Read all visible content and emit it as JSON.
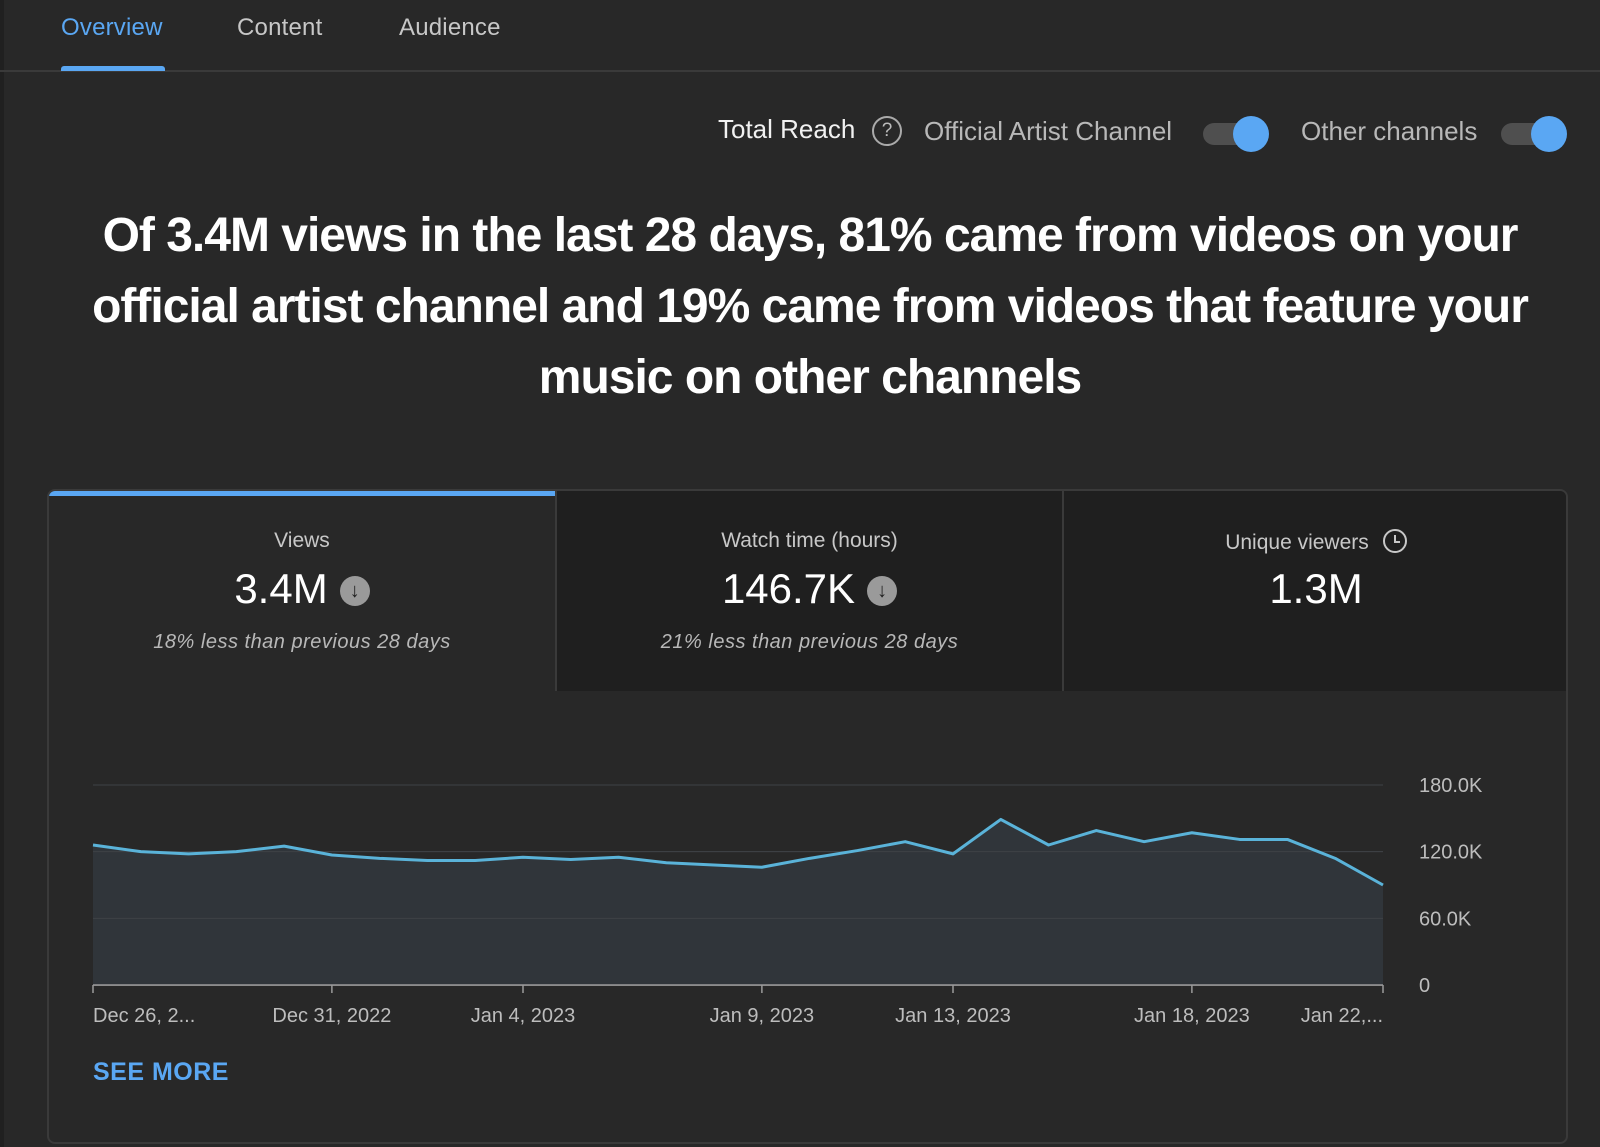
{
  "tabs": [
    {
      "label": "Overview",
      "active": true
    },
    {
      "label": "Content",
      "active": false
    },
    {
      "label": "Audience",
      "active": false
    }
  ],
  "reach": {
    "title": "Total Reach",
    "help_icon": "help-circle-icon",
    "toggles": [
      {
        "label": "Official Artist Channel",
        "on": true
      },
      {
        "label": "Other channels",
        "on": true
      }
    ]
  },
  "headline": "Of 3.4M views in the last 28 days, 81% came from videos on your official artist channel and 19% came from videos that feature your music on other channels",
  "metrics": [
    {
      "label": "Views",
      "value": "3.4M",
      "trend_icon": "arrow-down-circle-icon",
      "change": "18% less than previous 28 days",
      "selected": true
    },
    {
      "label": "Watch time (hours)",
      "value": "146.7K",
      "trend_icon": "arrow-down-circle-icon",
      "change": "21% less than previous 28 days",
      "selected": false
    },
    {
      "label": "Unique viewers",
      "value": "1.3M",
      "info_icon": "clock-icon",
      "selected": false
    }
  ],
  "accent_color": "#5aa7f3",
  "line_color": "#5ab3d9",
  "see_more": "SEE MORE",
  "chart_data": {
    "type": "area",
    "ylim": [
      0,
      180000
    ],
    "y_ticks": [
      "180.0K",
      "120.0K",
      "60.0K",
      "0"
    ],
    "y_tick_values": [
      180000,
      120000,
      60000,
      0
    ],
    "x_tick_labels": [
      "Dec 26, 2...",
      "Dec 31, 2022",
      "Jan 4, 2023",
      "Jan 9, 2023",
      "Jan 13, 2023",
      "Jan 18, 2023",
      "Jan 22,..."
    ],
    "x_tick_indices": [
      0,
      5,
      9,
      14,
      18,
      23,
      27
    ],
    "series": [
      {
        "values": [
          126000,
          120000,
          118000,
          120000,
          125000,
          117000,
          114000,
          112000,
          112000,
          115000,
          113000,
          115000,
          110000,
          108000,
          106000,
          114000,
          121000,
          129000,
          118000,
          149000,
          126000,
          139000,
          129000,
          137000,
          131000,
          131000,
          114000,
          90000
        ]
      }
    ],
    "grid": true
  }
}
